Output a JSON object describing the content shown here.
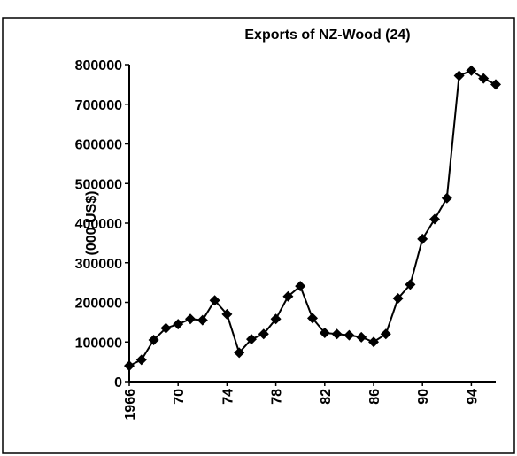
{
  "chart_data": {
    "type": "line",
    "title": "Exports of NZ-Wood (24)",
    "y_label": "(000 US$)",
    "x": [
      1966,
      1967,
      1968,
      1969,
      1970,
      1971,
      1972,
      1973,
      1974,
      1975,
      1976,
      1977,
      1978,
      1979,
      1980,
      1981,
      1982,
      1983,
      1984,
      1985,
      1986,
      1987,
      1988,
      1989,
      1990,
      1991,
      1992,
      1993,
      1994,
      1995,
      1996
    ],
    "series": [
      {
        "name": "Exports",
        "color": "#000000",
        "values": [
          40000,
          55000,
          105000,
          135000,
          145000,
          158000,
          155000,
          205000,
          170000,
          73000,
          107000,
          120000,
          158000,
          215000,
          241000,
          160000,
          123000,
          120000,
          117000,
          112000,
          100000,
          120000,
          210000,
          245000,
          360000,
          410000,
          463000,
          772000,
          785000,
          765000,
          750000
        ]
      }
    ],
    "xlim": [
      1966,
      1996
    ],
    "xticks": [
      {
        "value": 1966,
        "label": "1966"
      },
      {
        "value": 1970,
        "label": "70"
      },
      {
        "value": 1974,
        "label": "74"
      },
      {
        "value": 1978,
        "label": "78"
      },
      {
        "value": 1982,
        "label": "82"
      },
      {
        "value": 1986,
        "label": "86"
      },
      {
        "value": 1990,
        "label": "90"
      },
      {
        "value": 1994,
        "label": "94"
      }
    ],
    "ylim": [
      0,
      800000
    ],
    "yticks": [
      0,
      100000,
      200000,
      300000,
      400000,
      500000,
      600000,
      700000,
      800000
    ],
    "grid": false
  }
}
